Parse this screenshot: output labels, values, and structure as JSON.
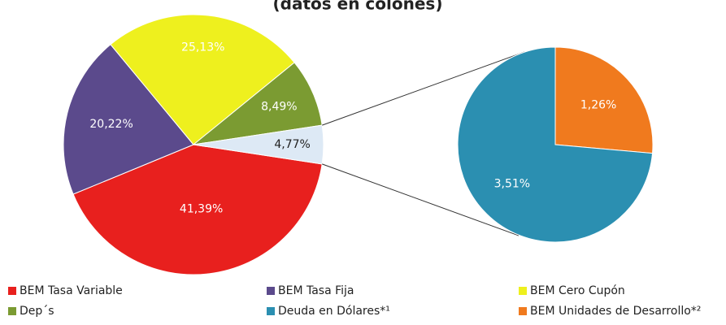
{
  "chart_data": {
    "type": "pie_of_pie",
    "subtitle": "(datos en colones)",
    "categories": [
      "BEM Tasa Variable",
      "BEM Tasa Fija",
      "BEM Cero Cupón",
      "Dep´s"
    ],
    "values": [
      41.39,
      20.22,
      25.13,
      8.49
    ],
    "value_labels": [
      "41,39%",
      "20,22%",
      "25,13%",
      "8,49%"
    ],
    "colors": [
      "#e8201e",
      "#5b4a8c",
      "#eef01e",
      "#7b9b32"
    ],
    "other": {
      "value": 4.77,
      "value_label": "4,77%",
      "color": "#dde9f5"
    },
    "secondary": {
      "categories": [
        "Deuda en Dólares*¹",
        "BEM Unidades de Desarrollo*²"
      ],
      "values": [
        3.51,
        1.26
      ],
      "value_labels": [
        "3,51%",
        "1,26%"
      ],
      "colors": [
        "#2b8fb1",
        "#f07a1e"
      ]
    }
  }
}
